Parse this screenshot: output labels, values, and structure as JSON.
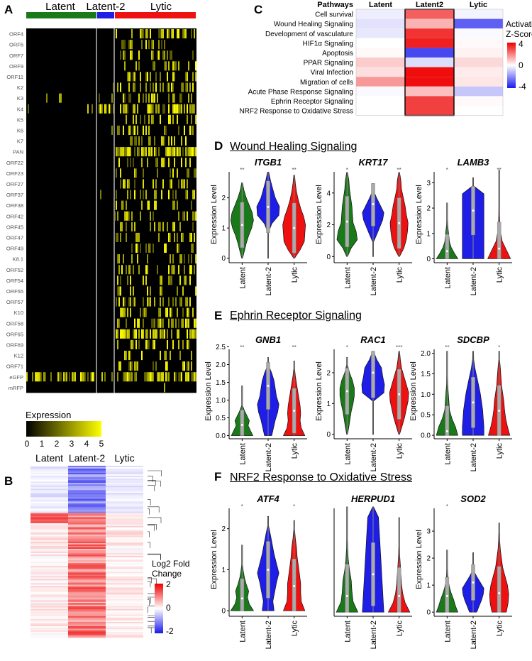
{
  "panels": {
    "A": "A",
    "B": "B",
    "C": "C",
    "D": "D",
    "E": "E",
    "F": "F"
  },
  "colors": {
    "latent": "#1a7a1a",
    "latent2": "#1e1ee6",
    "lytic": "#ee1111",
    "heat_hi": "#ffff00"
  },
  "panelA": {
    "groups": [
      "Latent",
      "Latent-2",
      "Lytic"
    ],
    "genes": [
      "ORF4",
      "ORF6",
      "ORF7",
      "ORF9",
      "ORF11",
      "K2",
      "K3",
      "K4",
      "K5",
      "K6",
      "K7",
      "PAN",
      "ORF22",
      "ORF23",
      "ORF27",
      "ORF37",
      "ORF38",
      "ORF42",
      "ORF45",
      "ORF47",
      "ORF49",
      "K8.1",
      "ORF52",
      "ORF54",
      "ORF55",
      "ORF57",
      "K10",
      "ORF58",
      "ORF65",
      "ORF69",
      "K12",
      "ORF71",
      "eGFP",
      "mRFP"
    ],
    "legend_title": "Expression",
    "legend_ticks": [
      "0",
      "1",
      "2",
      "3",
      "4",
      "5"
    ]
  },
  "panelB": {
    "groups": [
      "Latent",
      "Latent-2",
      "Lytic"
    ],
    "legend_title_1": "Log2 Fold",
    "legend_title_2": "Change",
    "legend_ticks": [
      "2",
      "0",
      "-2"
    ]
  },
  "panelC": {
    "header": [
      "Pathways",
      "Latent",
      "Latent2",
      "Lytic"
    ],
    "pathways": [
      "Cell survival",
      "Wound Healing Signaling",
      "Development of vasculature",
      "HIF1α Signaling",
      "Apoptosis",
      "PPAR Signaling",
      "Viral Infection",
      "Migration of cells",
      "Acute Phase Response Signaling",
      "Ephrin Receptor Signaling",
      "NRF2 Response to Oxidative Stress"
    ],
    "zscores": [
      [
        -0.3,
        2.5,
        -0.2
      ],
      [
        -0.5,
        1.2,
        -2.8
      ],
      [
        -0.4,
        3.2,
        -0.1
      ],
      [
        0.0,
        3.5,
        0.1
      ],
      [
        0.1,
        -3.2,
        0.2
      ],
      [
        0.8,
        -0.6,
        0.6
      ],
      [
        0.5,
        3.8,
        0.3
      ],
      [
        1.6,
        3.8,
        0.4
      ],
      [
        -0.1,
        1.0,
        -1.0
      ],
      [
        0.0,
        3.0,
        0.1
      ],
      [
        0.0,
        3.0,
        0.0
      ]
    ],
    "legend_title_1": "Activation",
    "legend_title_2": "Z-Score",
    "legend_ticks": [
      "4",
      "0",
      "-4"
    ]
  },
  "sections": {
    "D": "Wound Healing Signaling",
    "E": "Ephrin Receptor Signaling",
    "F": "NRF2 Response to Oxidative Stress"
  },
  "violin_common": {
    "ylabel": "Expression Level",
    "xcats": [
      "Latent",
      "Latent-2",
      "Lytic"
    ]
  },
  "chart_data": [
    {
      "type": "violin",
      "section": "D",
      "gene": "ITGB1",
      "ylabel": "Expression Level",
      "categories": [
        "Latent",
        "Latent-2",
        "Lytic"
      ],
      "ylim": [
        -0.1,
        3.0
      ],
      "yticks": [
        "0",
        "1",
        "2"
      ],
      "sig": [
        "**",
        "",
        "**"
      ],
      "max": [
        2.5,
        2.85,
        2.75
      ],
      "median": [
        1.1,
        1.7,
        1.0
      ]
    },
    {
      "type": "violin",
      "section": "D",
      "gene": "KRT17",
      "ylabel": "Expression Level",
      "categories": [
        "Latent",
        "Latent-2",
        "Lytic"
      ],
      "ylim": [
        -0.3,
        5.6
      ],
      "yticks": [
        "0",
        "2",
        "4"
      ],
      "sig": [
        "*",
        "",
        "**"
      ],
      "max": [
        5.3,
        4.6,
        5.3
      ],
      "median": [
        2.2,
        3.3,
        2.1
      ]
    },
    {
      "type": "violin",
      "section": "D",
      "gene": "LAMB3",
      "ylabel": "Expression Level",
      "categories": [
        "Latent",
        "Latent-2",
        "Lytic"
      ],
      "ylim": [
        -0.1,
        3.6
      ],
      "yticks": [
        "0",
        "1",
        "2",
        "3"
      ],
      "sig": [
        "*",
        "",
        "**"
      ],
      "max": [
        2.2,
        3.2,
        3.5
      ],
      "median": [
        0.3,
        1.9,
        0.4
      ]
    },
    {
      "type": "violin",
      "section": "E",
      "gene": "GNB1",
      "ylabel": "Expression Level",
      "categories": [
        "Latent",
        "Latent-2",
        "Lytic"
      ],
      "ylim": [
        -0.05,
        2.55
      ],
      "yticks": [
        "0.0",
        "0.5",
        "1.0",
        "1.5",
        "2.0",
        "2.5"
      ],
      "sig": [
        "**",
        "",
        "**"
      ],
      "max": [
        1.4,
        2.2,
        2.1
      ],
      "median": [
        0.3,
        1.4,
        0.7
      ]
    },
    {
      "type": "violin",
      "section": "E",
      "gene": "RAC1",
      "ylabel": "Expression Level",
      "categories": [
        "Latent",
        "Latent-2",
        "Lytic"
      ],
      "ylim": [
        -0.1,
        2.9
      ],
      "yticks": [
        "0",
        "1",
        "2"
      ],
      "sig": [
        "*",
        "",
        "***"
      ],
      "max": [
        2.5,
        2.7,
        2.7
      ],
      "median": [
        1.4,
        2.0,
        1.3
      ]
    },
    {
      "type": "violin",
      "section": "E",
      "gene": "SDCBP",
      "ylabel": "Expression Level",
      "categories": [
        "Latent",
        "Latent-2",
        "Lytic"
      ],
      "ylim": [
        -0.05,
        2.2
      ],
      "yticks": [
        "0.0",
        "0.5",
        "1.0",
        "1.5",
        "2.0"
      ],
      "sig": [
        "**",
        "",
        "*"
      ],
      "max": [
        2.05,
        2.05,
        2.05
      ],
      "median": [
        0.1,
        0.8,
        0.6
      ]
    },
    {
      "type": "violin",
      "section": "F",
      "gene": "ATF4",
      "ylabel": "Expression Level",
      "categories": [
        "Latent",
        "Latent-2",
        "Lytic"
      ],
      "ylim": [
        -0.1,
        2.6
      ],
      "yticks": [
        "0",
        "1",
        "2"
      ],
      "sig": [
        "*",
        "",
        "*"
      ],
      "max": [
        1.6,
        2.3,
        2.2
      ],
      "median": [
        0.3,
        1.0,
        0.6
      ]
    },
    {
      "type": "violin",
      "section": "F",
      "gene": "HERPUD1",
      "ylabel": "",
      "categories": [
        "Latent",
        "Latent-2",
        "Lytic"
      ],
      "ylim": [
        -0.05,
        2.0
      ],
      "yticks": [],
      "sig": [
        "",
        "",
        ""
      ],
      "max": [
        1.95,
        1.95,
        1.75
      ],
      "median": [
        0.3,
        0.7,
        0.3
      ]
    },
    {
      "type": "violin",
      "section": "F",
      "gene": "SOD2",
      "ylabel": "Expression Level",
      "categories": [
        "Latent",
        "Latent-2",
        "Lytic"
      ],
      "ylim": [
        -0.1,
        4.0
      ],
      "yticks": [
        "0",
        "1",
        "2",
        "3"
      ],
      "sig": [
        "*",
        "",
        ""
      ],
      "max": [
        2.3,
        2.2,
        3.3
      ],
      "median": [
        0.6,
        1.1,
        0.7
      ]
    }
  ]
}
